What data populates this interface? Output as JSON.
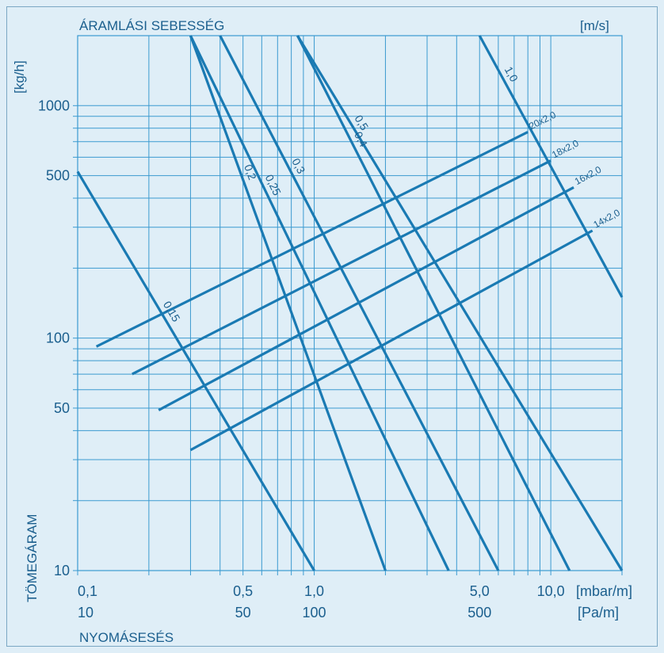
{
  "chart_data": {
    "type": "line",
    "title": "ÁRAMLÁSI SEBESSÉG",
    "title_unit": "[m/s]",
    "ylabel_unit": "[kg/h]",
    "ylabel": "TÖMEGÁRAM",
    "xlabel": "NYOMÁSESÉS",
    "x_unit_1": "[mbar/m]",
    "x_unit_2": "[Pa/m]",
    "x_scale": "log",
    "y_scale": "log",
    "xlim_mbar_m": [
      0.1,
      20
    ],
    "ylim_kg_h": [
      10,
      2000
    ],
    "grid": true,
    "x_ticks": [
      {
        "value": 0.1,
        "label1": "0,1",
        "label2": "10"
      },
      {
        "value": 0.5,
        "label1": "0,5",
        "label2": "50"
      },
      {
        "value": 1.0,
        "label1": "1,0",
        "label2": "100"
      },
      {
        "value": 5.0,
        "label1": "5,0",
        "label2": "500"
      },
      {
        "value": 10.0,
        "label1": "10,0",
        "label2": ""
      }
    ],
    "y_ticks": [
      {
        "value": 10,
        "label": "10"
      },
      {
        "value": 50,
        "label": "50"
      },
      {
        "value": 100,
        "label": "100"
      },
      {
        "value": 500,
        "label": "500"
      },
      {
        "value": 1000,
        "label": "1000"
      }
    ],
    "velocity_series": [
      {
        "name": "0,15",
        "x": [
          0.1,
          1.0
        ],
        "y": [
          520,
          10
        ]
      },
      {
        "name": "0,2",
        "x": [
          0.3,
          2.0
        ],
        "y": [
          2000,
          10
        ]
      },
      {
        "name": "0,25",
        "x": [
          0.3,
          3.7
        ],
        "y": [
          2000,
          10
        ]
      },
      {
        "name": "0,3",
        "x": [
          0.4,
          6.0
        ],
        "y": [
          2000,
          10
        ]
      },
      {
        "name": "0,4",
        "x": [
          0.85,
          12.0
        ],
        "y": [
          2000,
          10
        ]
      },
      {
        "name": "0,5",
        "x": [
          0.85,
          20.0
        ],
        "y": [
          2000,
          10
        ]
      },
      {
        "name": "1,0",
        "x": [
          5.0,
          20.0
        ],
        "y": [
          2000,
          150
        ]
      }
    ],
    "pipe_series": [
      {
        "name": "20x2,0",
        "x": [
          0.12,
          8.0
        ],
        "y": [
          92,
          770
        ]
      },
      {
        "name": "18x2,0",
        "x": [
          0.17,
          10.0
        ],
        "y": [
          70,
          580
        ]
      },
      {
        "name": "16x2,0",
        "x": [
          0.22,
          12.5
        ],
        "y": [
          49,
          445
        ]
      },
      {
        "name": "14x2,0",
        "x": [
          0.3,
          15.0
        ],
        "y": [
          33,
          290
        ]
      }
    ],
    "colors": {
      "line": "#1a7ab3",
      "grid": "#3b9ad0",
      "text": "#1b5f8e",
      "background": "#dfeef7"
    }
  }
}
